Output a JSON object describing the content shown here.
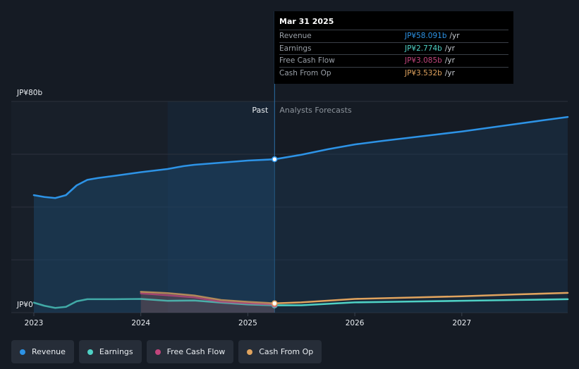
{
  "chart_data": {
    "type": "line",
    "y_unit_label": "JP¥80b",
    "y_zero_label": "JP¥0",
    "ylim": [
      0,
      80
    ],
    "xlim": [
      2023.0,
      2027.99
    ],
    "x_ticks": [
      {
        "value": 2023.0,
        "label": "2023"
      },
      {
        "value": 2024.0,
        "label": "2024"
      },
      {
        "value": 2025.0,
        "label": "2025"
      },
      {
        "value": 2026.0,
        "label": "2026"
      },
      {
        "value": 2027.0,
        "label": "2027"
      }
    ],
    "divider": {
      "x": 2025.25,
      "past_label": "Past",
      "forecast_label": "Analysts Forecasts"
    },
    "highlight_start": 2024.25,
    "series": [
      {
        "name": "Revenue",
        "key": "revenue",
        "color": "#2d93e6",
        "filled": true,
        "points": [
          [
            2023.0,
            44.5
          ],
          [
            2023.1,
            43.8
          ],
          [
            2023.2,
            43.4
          ],
          [
            2023.3,
            44.5
          ],
          [
            2023.4,
            48.2
          ],
          [
            2023.5,
            50.3
          ],
          [
            2023.6,
            51.0
          ],
          [
            2023.75,
            51.8
          ],
          [
            2024.0,
            53.2
          ],
          [
            2024.25,
            54.4
          ],
          [
            2024.4,
            55.5
          ],
          [
            2024.5,
            56.0
          ],
          [
            2024.75,
            56.8
          ],
          [
            2025.0,
            57.6
          ],
          [
            2025.25,
            58.091
          ],
          [
            2025.5,
            59.8
          ],
          [
            2025.75,
            61.9
          ],
          [
            2026.0,
            63.7
          ],
          [
            2026.25,
            65.0
          ],
          [
            2026.5,
            66.2
          ],
          [
            2026.75,
            67.4
          ],
          [
            2027.0,
            68.6
          ],
          [
            2027.25,
            70.0
          ],
          [
            2027.5,
            71.4
          ],
          [
            2027.75,
            72.8
          ],
          [
            2027.99,
            74.1
          ]
        ]
      },
      {
        "name": "Earnings",
        "key": "earnings",
        "color": "#4fd1c5",
        "filled": false,
        "points": [
          [
            2023.0,
            3.8
          ],
          [
            2023.1,
            2.6
          ],
          [
            2023.2,
            1.8
          ],
          [
            2023.3,
            2.2
          ],
          [
            2023.4,
            4.3
          ],
          [
            2023.5,
            5.1
          ],
          [
            2023.75,
            5.1
          ],
          [
            2024.0,
            5.2
          ],
          [
            2024.25,
            4.5
          ],
          [
            2024.5,
            4.6
          ],
          [
            2024.75,
            3.8
          ],
          [
            2025.0,
            3.1
          ],
          [
            2025.25,
            2.774
          ],
          [
            2025.5,
            2.8
          ],
          [
            2026.0,
            3.9
          ],
          [
            2026.5,
            4.2
          ],
          [
            2027.0,
            4.5
          ],
          [
            2027.5,
            4.8
          ],
          [
            2027.99,
            5.1
          ]
        ]
      },
      {
        "name": "Free Cash Flow",
        "key": "fcf",
        "color": "#c2457c",
        "filled": false,
        "points": [
          [
            2024.0,
            7.3
          ],
          [
            2024.25,
            6.6
          ],
          [
            2024.5,
            5.8
          ],
          [
            2024.75,
            4.1
          ],
          [
            2025.0,
            3.5
          ],
          [
            2025.25,
            3.085
          ]
        ]
      },
      {
        "name": "Cash From Op",
        "key": "cfo",
        "color": "#e0a35e",
        "filled": false,
        "points": [
          [
            2024.0,
            7.9
          ],
          [
            2024.25,
            7.4
          ],
          [
            2024.5,
            6.5
          ],
          [
            2024.75,
            4.8
          ],
          [
            2025.0,
            4.1
          ],
          [
            2025.25,
            3.532
          ],
          [
            2025.5,
            3.9
          ],
          [
            2026.0,
            5.2
          ],
          [
            2026.5,
            5.7
          ],
          [
            2027.0,
            6.2
          ],
          [
            2027.5,
            6.9
          ],
          [
            2027.99,
            7.5
          ]
        ]
      }
    ]
  },
  "tooltip": {
    "date": "Mar 31 2025",
    "rows": [
      {
        "label": "Revenue",
        "value": "JP¥58.091b",
        "unit": "/yr",
        "color": "#2d93e6"
      },
      {
        "label": "Earnings",
        "value": "JP¥2.774b",
        "unit": "/yr",
        "color": "#4fd1c5"
      },
      {
        "label": "Free Cash Flow",
        "value": "JP¥3.085b",
        "unit": "/yr",
        "color": "#c2457c"
      },
      {
        "label": "Cash From Op",
        "value": "JP¥3.532b",
        "unit": "/yr",
        "color": "#e0a35e"
      }
    ]
  },
  "legend": {
    "items": [
      {
        "label": "Revenue",
        "color": "#2d93e6"
      },
      {
        "label": "Earnings",
        "color": "#4fd1c5"
      },
      {
        "label": "Free Cash Flow",
        "color": "#c2457c"
      },
      {
        "label": "Cash From Op",
        "color": "#e0a35e"
      }
    ]
  }
}
